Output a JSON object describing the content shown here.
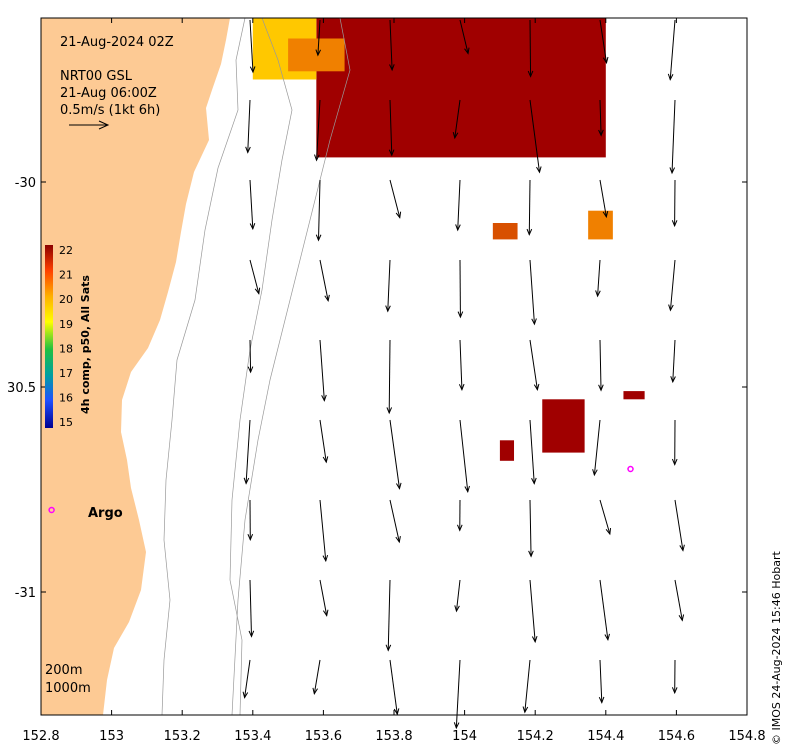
{
  "header": {
    "timestamp": "21-Aug-2024 02Z",
    "current_product": "NRT00 GSL",
    "current_time": "21-Aug 06:00Z",
    "scale_label": "0.5m/s (1kt 6h)"
  },
  "colorbar": {
    "title": "4h comp, p50, All Sats",
    "ticks": [
      "22",
      "21",
      "20",
      "19",
      "18",
      "17",
      "16",
      "15"
    ]
  },
  "legend": {
    "contour_200": "200m",
    "contour_1000": "1000m"
  },
  "argo": {
    "label": "Argo",
    "marker": "o"
  },
  "axes": {
    "x_ticks": [
      "152.8",
      "153",
      "153.2",
      "153.4",
      "153.6",
      "153.8",
      "154",
      "154.2",
      "154.4",
      "154.6",
      "154.8"
    ],
    "y_ticks": [
      "-30",
      "30.5",
      "-31"
    ],
    "xlim": [
      152.8,
      154.8
    ],
    "ylim": [
      -31.3,
      -29.6
    ]
  },
  "credit": "© IMOS 24-Aug-2024 15:46 Hobart",
  "colors": {
    "land": "#fdca94",
    "sst_22": "#a00000",
    "sst_21_5": "#d85000",
    "sst_21": "#f08000",
    "sst_20_5": "#f8a800",
    "sst_20": "#ffc800",
    "argo_marker": "#ff00ff"
  },
  "sst_patches": [
    {
      "lon_min": 153.58,
      "lon_max": 154.4,
      "lat_min": -29.94,
      "lat_max": -29.6,
      "temp": 22
    },
    {
      "lon_min": 153.4,
      "lon_max": 153.58,
      "lat_min": -29.75,
      "lat_max": -29.6,
      "temp": 20
    },
    {
      "lon_min": 153.5,
      "lon_max": 153.66,
      "lat_min": -29.73,
      "lat_max": -29.65,
      "temp": 21
    },
    {
      "lon_min": 154.08,
      "lon_max": 154.15,
      "lat_min": -30.14,
      "lat_max": -30.1,
      "temp": 21.5
    },
    {
      "lon_min": 154.35,
      "lon_max": 154.42,
      "lat_min": -30.14,
      "lat_max": -30.07,
      "temp": 21
    },
    {
      "lon_min": 154.22,
      "lon_max": 154.34,
      "lat_min": -30.66,
      "lat_max": -30.53,
      "temp": 22
    },
    {
      "lon_min": 154.1,
      "lon_max": 154.14,
      "lat_min": -30.68,
      "lat_max": -30.63,
      "temp": 22
    },
    {
      "lon_min": 154.45,
      "lon_max": 154.51,
      "lat_min": -30.53,
      "lat_max": -30.51,
      "temp": 22
    }
  ],
  "argo_floats": [
    {
      "lon": 152.83,
      "lat": -30.8
    },
    {
      "lon": 154.47,
      "lat": -30.7
    }
  ]
}
